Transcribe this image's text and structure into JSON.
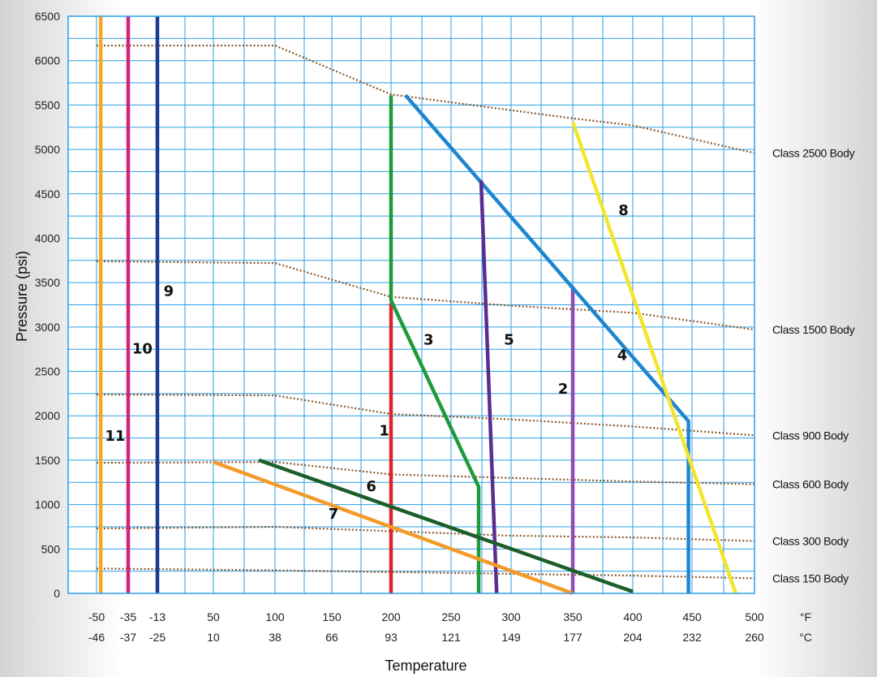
{
  "chart_data": {
    "type": "line",
    "xlabel": "Temperature",
    "ylabel": "Pressure (psi)",
    "xlim": [
      -50,
      500
    ],
    "ylim": [
      0,
      6500
    ],
    "grid": true,
    "x_ticks": [
      {
        "f": "-50",
        "c": "-46"
      },
      {
        "f": "-35",
        "c": "-37"
      },
      {
        "f": "-13",
        "c": "-25"
      },
      {
        "f": "50",
        "c": "10"
      },
      {
        "f": "100",
        "c": "38"
      },
      {
        "f": "150",
        "c": "66"
      },
      {
        "f": "200",
        "c": "93"
      },
      {
        "f": "250",
        "c": "121"
      },
      {
        "f": "300",
        "c": "149"
      },
      {
        "f": "350",
        "c": "177"
      },
      {
        "f": "400",
        "c": "204"
      },
      {
        "f": "450",
        "c": "232"
      },
      {
        "f": "500",
        "c": "260"
      }
    ],
    "x_units": {
      "f": "°F",
      "c": "°C"
    },
    "y_ticks": [
      "0",
      "500",
      "1000",
      "1500",
      "2000",
      "2500",
      "3000",
      "3500",
      "4000",
      "4500",
      "5000",
      "5500",
      "6000",
      "6500"
    ],
    "class_curves": [
      {
        "name": "Class 2500 Body",
        "points": [
          [
            -50,
            6170
          ],
          [
            100,
            6170
          ],
          [
            200,
            5620
          ],
          [
            350,
            5350
          ],
          [
            400,
            5270
          ],
          [
            500,
            4960
          ]
        ]
      },
      {
        "name": "Class 1500 Body",
        "points": [
          [
            -50,
            3740
          ],
          [
            100,
            3720
          ],
          [
            200,
            3340
          ],
          [
            300,
            3240
          ],
          [
            400,
            3160
          ],
          [
            500,
            2970
          ]
        ]
      },
      {
        "name": "Class 900 Body",
        "points": [
          [
            -50,
            2240
          ],
          [
            100,
            2230
          ],
          [
            200,
            2020
          ],
          [
            300,
            1960
          ],
          [
            400,
            1880
          ],
          [
            500,
            1780
          ]
        ]
      },
      {
        "name": "Class 600 Body",
        "points": [
          [
            -50,
            1470
          ],
          [
            100,
            1480
          ],
          [
            200,
            1340
          ],
          [
            300,
            1300
          ],
          [
            400,
            1260
          ],
          [
            500,
            1230
          ]
        ]
      },
      {
        "name": "Class 300 Body",
        "points": [
          [
            -50,
            730
          ],
          [
            100,
            750
          ],
          [
            200,
            700
          ],
          [
            300,
            650
          ],
          [
            400,
            630
          ],
          [
            500,
            590
          ]
        ]
      },
      {
        "name": "Class 150 Body",
        "points": [
          [
            -50,
            280
          ],
          [
            100,
            260
          ],
          [
            200,
            240
          ],
          [
            300,
            220
          ],
          [
            400,
            200
          ],
          [
            500,
            170
          ]
        ]
      }
    ],
    "series": [
      {
        "name": "1",
        "color": "#d9252b",
        "points": [
          [
            200,
            3270
          ],
          [
            200,
            0
          ]
        ],
        "label_at": [
          190,
          1780
        ]
      },
      {
        "name": "2",
        "color": "#8e4db5",
        "points": [
          [
            350,
            3460
          ],
          [
            350,
            0
          ]
        ],
        "label_at": [
          338,
          2250
        ]
      },
      {
        "name": "3",
        "color": "#1d9a3b",
        "points": [
          [
            200,
            5610
          ],
          [
            200,
            3300
          ],
          [
            273,
            1200
          ],
          [
            273,
            0
          ]
        ],
        "label_at": [
          227,
          2800
        ]
      },
      {
        "name": "4",
        "color": "#1e86cf",
        "points": [
          [
            212,
            5610
          ],
          [
            447,
            1940
          ],
          [
            447,
            0
          ]
        ],
        "label_at": [
          387,
          2630
        ]
      },
      {
        "name": "5",
        "color": "#5a2d91",
        "points": [
          [
            275,
            4650
          ],
          [
            288,
            0
          ]
        ],
        "label_at": [
          294,
          2800
        ]
      },
      {
        "name": "6",
        "color": "#1c5e2a",
        "points": [
          [
            87,
            1500
          ],
          [
            400,
            20
          ]
        ],
        "label_at": [
          179,
          1150
        ]
      },
      {
        "name": "7",
        "color": "#f39b2a",
        "points": [
          [
            50,
            1480
          ],
          [
            350,
            0
          ]
        ],
        "label_at": [
          147,
          840
        ]
      },
      {
        "name": "8",
        "color": "#f2e52e",
        "points": [
          [
            350,
            5310
          ],
          [
            485,
            0
          ]
        ],
        "label_at": [
          388,
          4260
        ]
      },
      {
        "name": "9",
        "color": "#1b3a8f",
        "points": [
          [
            -13,
            6500
          ],
          [
            -13,
            0
          ]
        ],
        "label_at": [
          -6,
          3350
        ]
      },
      {
        "name": "10",
        "color": "#d2247a",
        "points": [
          [
            -35,
            6500
          ],
          [
            -35,
            0
          ]
        ],
        "label_at": [
          -32,
          2700
        ]
      },
      {
        "name": "11",
        "color": "#f5a623",
        "points": [
          [
            -48,
            6500
          ],
          [
            -48,
            0
          ]
        ],
        "label_at": [
          -46,
          1720
        ]
      }
    ]
  }
}
